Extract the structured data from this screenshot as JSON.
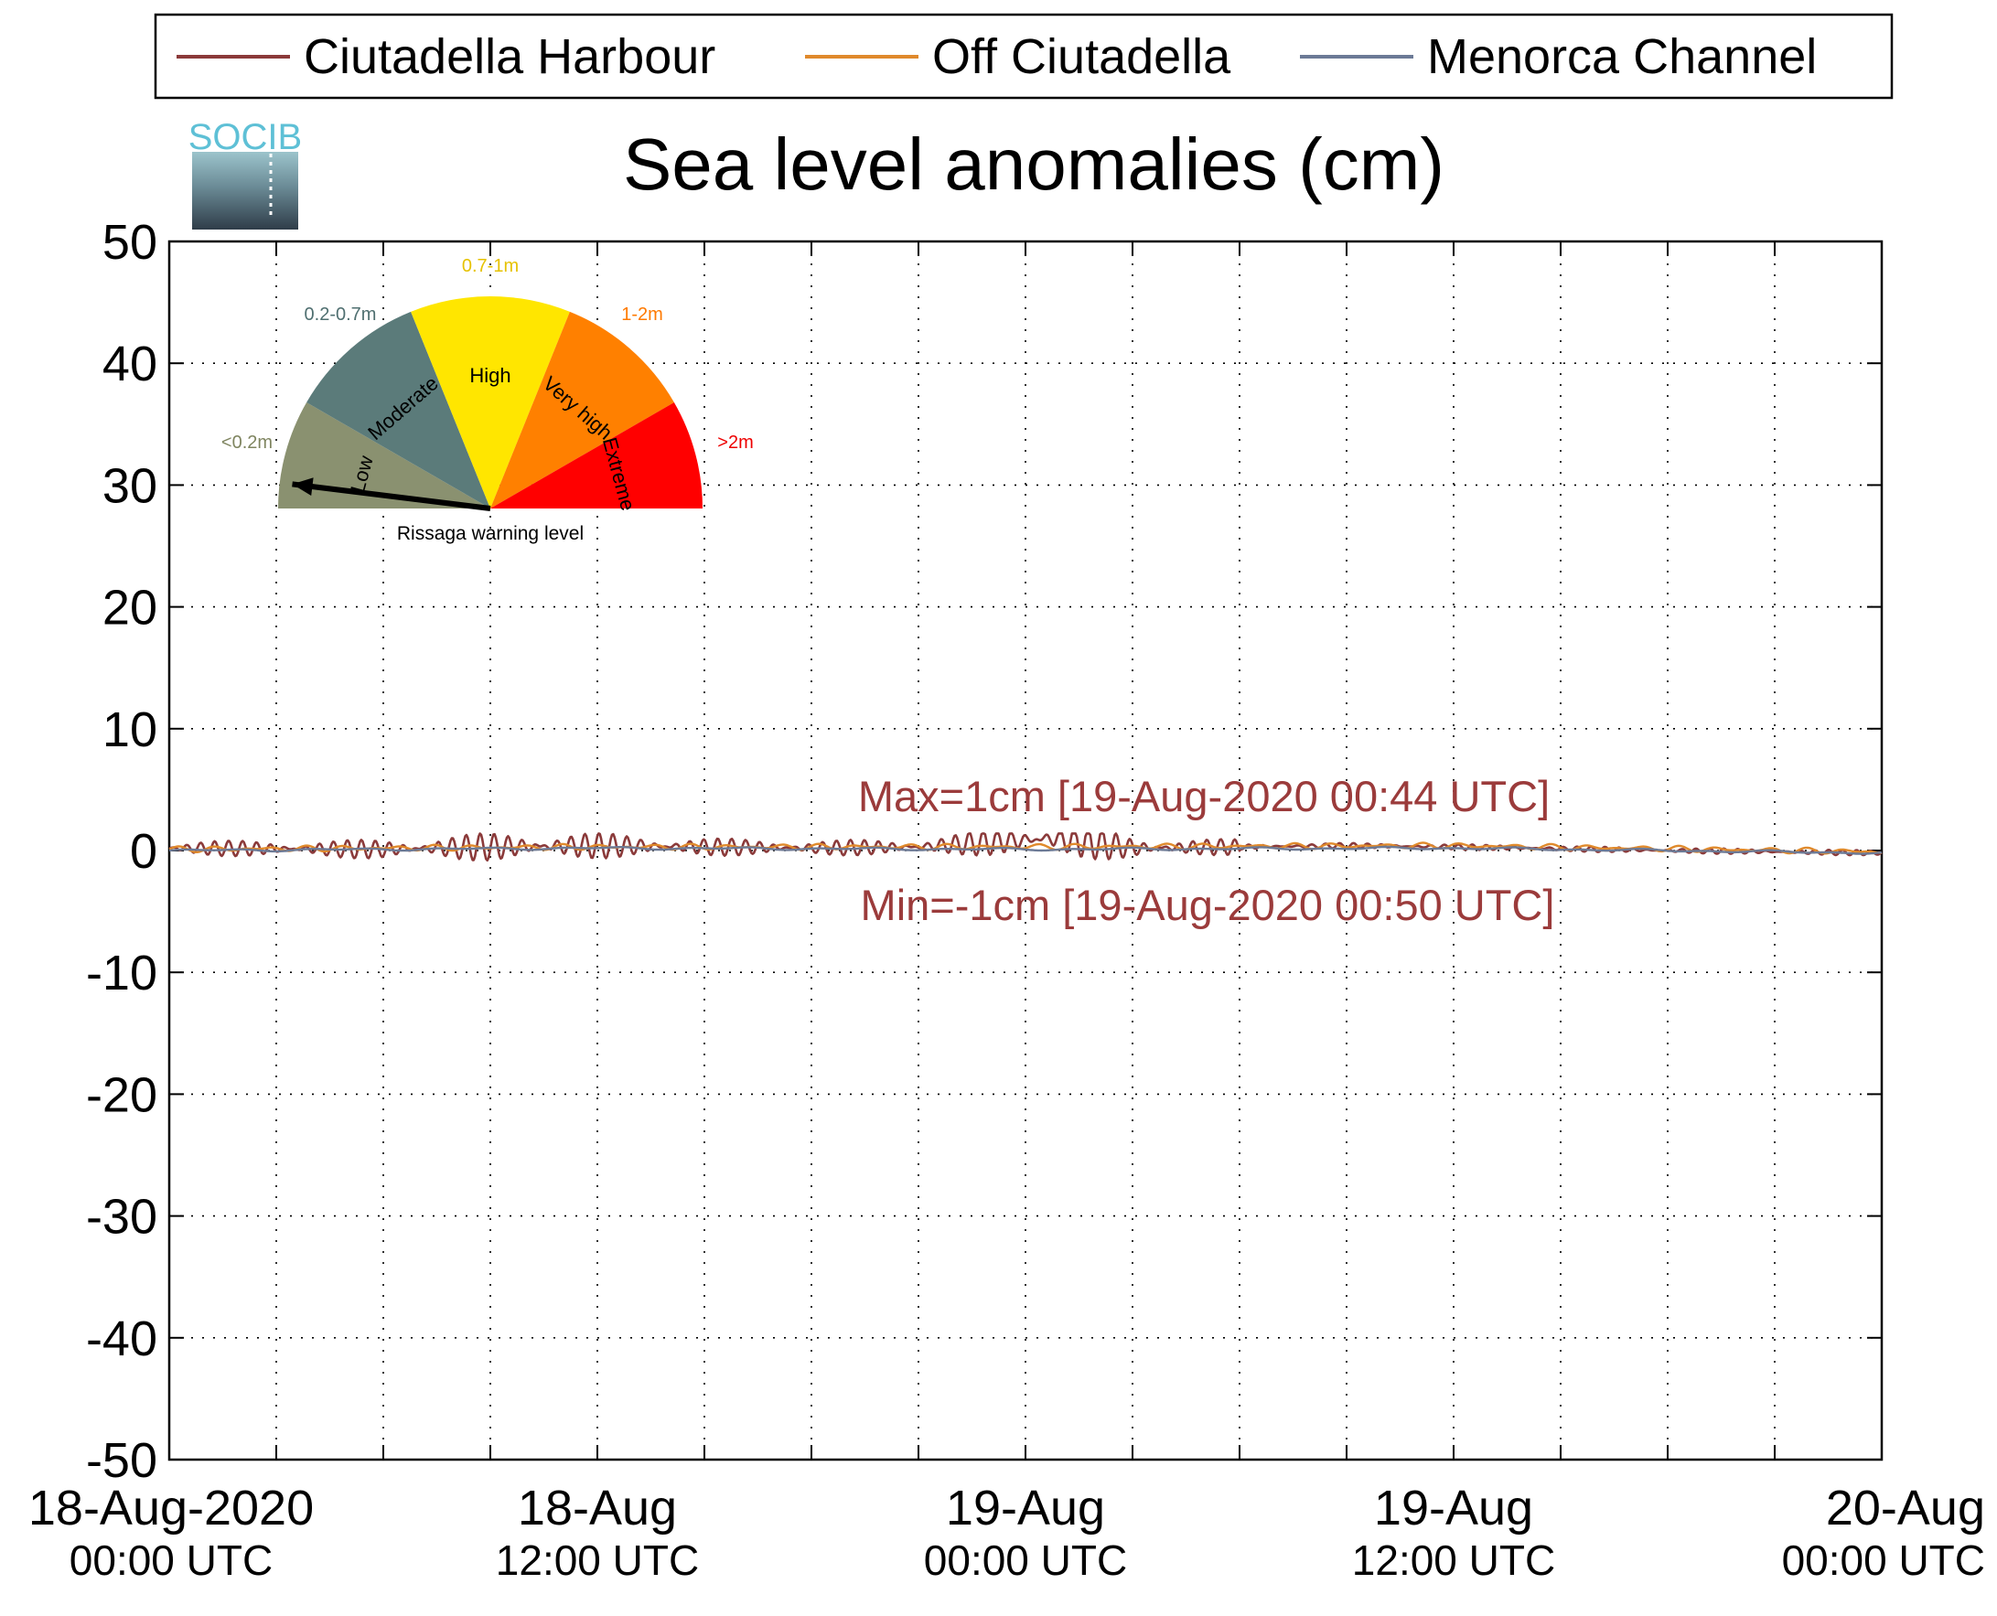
{
  "logo": {
    "text": "SOCIB"
  },
  "chart_data": {
    "type": "line",
    "title": "Sea level anomalies (cm)",
    "xlabel": "",
    "ylabel": "",
    "ylim": [
      -50,
      50
    ],
    "yticks": [
      50,
      40,
      30,
      20,
      10,
      0,
      -10,
      -20,
      -30,
      -40,
      -50
    ],
    "yticklabels": [
      "50",
      "40",
      "30",
      "20",
      "10",
      "0",
      "-10",
      "-20",
      "-30",
      "-40",
      "-50"
    ],
    "xlim": [
      "2020-08-18T00:00Z",
      "2020-08-20T00:00Z"
    ],
    "xticklabels": [
      {
        "line1": "18-Aug-2020",
        "line2": "00:00 UTC"
      },
      {
        "line1": "18-Aug",
        "line2": "12:00 UTC"
      },
      {
        "line1": "19-Aug",
        "line2": "00:00 UTC"
      },
      {
        "line1": "19-Aug",
        "line2": "12:00 UTC"
      },
      {
        "line1": "20-Aug",
        "line2": "00:00 UTC"
      }
    ],
    "grid": true,
    "legend_position": "top",
    "series": [
      {
        "name": "Ciutadella Harbour",
        "color": "#8b3a3a",
        "x": [
          "2020-08-18T00:00Z",
          "2020-08-18T06:00Z",
          "2020-08-18T09:00Z",
          "2020-08-18T12:00Z",
          "2020-08-18T18:00Z",
          "2020-08-18T21:00Z",
          "2020-08-19T00:44Z",
          "2020-08-19T03:00Z",
          "2020-08-19T09:00Z",
          "2020-08-19T12:00Z",
          "2020-08-19T18:00Z",
          "2020-08-20T00:00Z"
        ],
        "values": [
          0.2,
          0.1,
          0.3,
          0.4,
          0.2,
          0.3,
          1,
          0.2,
          0.4,
          0.3,
          0.0,
          -0.2
        ]
      },
      {
        "name": "Off Ciutadella",
        "color": "#e08a2c",
        "x": [
          "2020-08-18T00:00Z",
          "2020-08-18T12:00Z",
          "2020-08-19T00:00Z",
          "2020-08-19T12:00Z",
          "2020-08-20T00:00Z"
        ],
        "values": [
          0.1,
          0.3,
          0.3,
          0.4,
          -0.1
        ]
      },
      {
        "name": "Menorca Channel",
        "color": "#6c7a96",
        "x": [
          "2020-08-18T00:00Z",
          "2020-08-18T12:00Z",
          "2020-08-19T00:00Z",
          "2020-08-19T12:00Z",
          "2020-08-20T00:00Z"
        ],
        "values": [
          0.0,
          0.2,
          0.1,
          0.2,
          -0.2
        ]
      }
    ],
    "annotations": {
      "max": "Max=1cm [19-Aug-2020 00:44 UTC]",
      "min": "Min=-1cm [19-Aug-2020 00:50 UTC]",
      "color": "#9b3b3b"
    },
    "gauge": {
      "caption": "Rissaga warning level",
      "sectors": [
        {
          "name": "Low",
          "range": "<0.2m",
          "color": "#8a9170",
          "range_color": "#7f8560"
        },
        {
          "name": "Moderate",
          "range": "0.2-0.7m",
          "color": "#5b7b7a",
          "range_color": "#4f6f70"
        },
        {
          "name": "High",
          "range": "0.7-1m",
          "color": "#ffe600",
          "range_color": "#e6c200"
        },
        {
          "name": "Very high",
          "range": "1-2m",
          "color": "#ff8000",
          "range_color": "#ff7a00"
        },
        {
          "name": "Extreme",
          "range": ">2m",
          "color": "#ff0000",
          "range_color": "#ee0000"
        }
      ],
      "level": "Low"
    }
  }
}
